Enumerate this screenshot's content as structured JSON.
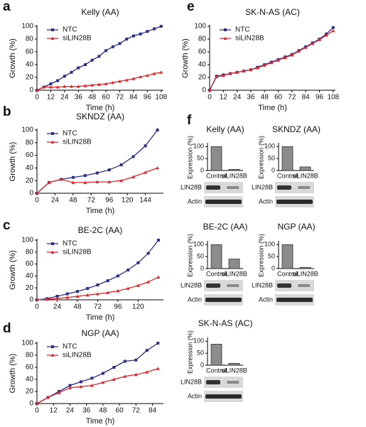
{
  "chart_data": [
    {
      "type": "line",
      "panel_label": "a",
      "title": "Kelly (AA)",
      "x_label": "Time (h)",
      "y_label": "Growth (%)",
      "x": [
        0,
        6,
        12,
        18,
        24,
        30,
        36,
        42,
        48,
        54,
        60,
        66,
        72,
        78,
        84,
        90,
        96,
        102,
        108
      ],
      "series": [
        {
          "name": "NTC",
          "color": "#2b2f8a",
          "values": [
            0,
            5,
            10,
            15,
            22,
            28,
            35,
            40,
            47,
            53,
            62,
            68,
            73,
            80,
            85,
            88,
            92,
            96,
            100
          ]
        },
        {
          "name": "siLIN28B",
          "color": "#e0282c",
          "values": [
            0,
            5,
            5,
            5,
            6,
            6,
            6,
            7,
            8,
            9,
            10,
            12,
            14,
            16,
            18,
            21,
            23,
            26,
            28
          ]
        }
      ],
      "xlim": [
        0,
        110
      ],
      "xticks": [
        0,
        12,
        24,
        36,
        48,
        60,
        72,
        84,
        96,
        108
      ],
      "ylim": [
        0,
        100
      ],
      "yticks": [
        0,
        20,
        40,
        60,
        80,
        100
      ]
    },
    {
      "type": "line",
      "panel_label": "b",
      "title": "SKNDZ (AA)",
      "x_label": "Time (h)",
      "y_label": "Growth (%)",
      "x": [
        0,
        16,
        32,
        48,
        64,
        80,
        96,
        112,
        128,
        144,
        160
      ],
      "series": [
        {
          "name": "NTC",
          "color": "#2b2f8a",
          "values": [
            0,
            17,
            22,
            25,
            28,
            32,
            37,
            45,
            58,
            75,
            100
          ]
        },
        {
          "name": "siLIN28B",
          "color": "#e0282c",
          "values": [
            0,
            17,
            22,
            17,
            17,
            18,
            18,
            20,
            26,
            33,
            40
          ]
        }
      ],
      "xlim": [
        0,
        168
      ],
      "xticks": [
        0,
        24,
        48,
        72,
        96,
        120,
        144
      ],
      "ylim": [
        0,
        100
      ],
      "yticks": [
        0,
        20,
        40,
        60,
        80,
        100
      ]
    },
    {
      "type": "line",
      "panel_label": "c",
      "title": "BE-2C (AA)",
      "x_label": "Time (h)",
      "y_label": "Growth (%)",
      "x": [
        0,
        12,
        24,
        36,
        48,
        60,
        72,
        84,
        96,
        108,
        120,
        132,
        144
      ],
      "series": [
        {
          "name": "NTC",
          "color": "#2b2f8a",
          "values": [
            0,
            2,
            6,
            10,
            14,
            19,
            25,
            32,
            40,
            50,
            62,
            78,
            100
          ]
        },
        {
          "name": "siLIN28B",
          "color": "#e0282c",
          "values": [
            0,
            1,
            2,
            4,
            6,
            8,
            10,
            12,
            15,
            19,
            24,
            30,
            38
          ]
        }
      ],
      "xlim": [
        0,
        150
      ],
      "xticks": [
        0,
        24,
        48,
        72,
        96,
        120
      ],
      "ylim": [
        0,
        100
      ],
      "yticks": [
        0,
        20,
        40,
        60,
        80,
        100
      ]
    },
    {
      "type": "line",
      "panel_label": "d",
      "title": "NGP (AA)",
      "x_label": "Time (h)",
      "y_label": "Growth (%)",
      "x": [
        0,
        8,
        16,
        24,
        32,
        40,
        48,
        56,
        64,
        72,
        80,
        88
      ],
      "series": [
        {
          "name": "NTC",
          "color": "#2b2f8a",
          "values": [
            0,
            10,
            20,
            30,
            36,
            42,
            50,
            60,
            70,
            72,
            88,
            100
          ]
        },
        {
          "name": "siLIN28B",
          "color": "#e0282c",
          "values": [
            0,
            10,
            18,
            26,
            28,
            30,
            35,
            40,
            45,
            48,
            52,
            58
          ]
        }
      ],
      "xlim": [
        0,
        92
      ],
      "xticks": [
        0,
        12,
        24,
        36,
        48,
        60,
        72,
        84
      ],
      "ylim": [
        0,
        100
      ],
      "yticks": [
        0,
        20,
        40,
        60,
        80,
        100
      ]
    },
    {
      "type": "line",
      "panel_label": "e",
      "title": "SK-N-AS (AC)",
      "x_label": "Time (h)",
      "y_label": "Growth (%)",
      "x": [
        0,
        6,
        12,
        18,
        24,
        30,
        36,
        42,
        48,
        54,
        60,
        66,
        72,
        78,
        84,
        90,
        96,
        102,
        108
      ],
      "series": [
        {
          "name": "NTC",
          "color": "#2b2f8a",
          "values": [
            0,
            22,
            24,
            26,
            28,
            30,
            32,
            36,
            40,
            44,
            48,
            52,
            56,
            62,
            68,
            74,
            80,
            88,
            98
          ]
        },
        {
          "name": "siLIN28B",
          "color": "#e0282c",
          "values": [
            0,
            21,
            23,
            26,
            28,
            30,
            32,
            35,
            39,
            43,
            47,
            51,
            55,
            61,
            67,
            73,
            79,
            86,
            93
          ]
        }
      ],
      "xlim": [
        0,
        110
      ],
      "xticks": [
        0,
        12,
        24,
        36,
        48,
        60,
        72,
        84,
        96,
        108
      ],
      "ylim": [
        0,
        100
      ],
      "yticks": [
        0,
        20,
        40,
        60,
        80,
        100
      ]
    },
    {
      "type": "bar",
      "panel_label": "f",
      "title": "Kelly (AA)",
      "y_label": "Expression (%)",
      "categories": [
        "Control",
        "siLIN28B"
      ],
      "values": [
        100,
        5
      ],
      "color": "#8c8c8c",
      "ylim": [
        0,
        110
      ],
      "yticks": [
        0,
        50,
        100
      ],
      "blot_labels": [
        "LIN28B",
        "Actin"
      ]
    },
    {
      "type": "bar",
      "title": "SKNDZ (AA)",
      "y_label": "Expression (%)",
      "categories": [
        "Control",
        "siLIN28B"
      ],
      "values": [
        100,
        15
      ],
      "color": "#8c8c8c",
      "ylim": [
        0,
        110
      ],
      "yticks": [
        0,
        50,
        100
      ],
      "blot_labels": [
        "LIN28B",
        "Actin"
      ]
    },
    {
      "type": "bar",
      "title": "BE-2C (AA)",
      "y_label": "Expression (%)",
      "categories": [
        "Control",
        "siLIN28B"
      ],
      "values": [
        100,
        40
      ],
      "color": "#8c8c8c",
      "ylim": [
        0,
        110
      ],
      "yticks": [
        0,
        50,
        100
      ],
      "blot_labels": [
        "LIN28B",
        "Actin"
      ]
    },
    {
      "type": "bar",
      "title": "NGP (AA)",
      "y_label": "Expression (%)",
      "categories": [
        "Control",
        "siLIN28B"
      ],
      "values": [
        100,
        5
      ],
      "color": "#8c8c8c",
      "ylim": [
        0,
        110
      ],
      "yticks": [
        0,
        50,
        100
      ],
      "blot_labels": [
        "LIN28B",
        "Actin"
      ]
    },
    {
      "type": "bar",
      "title": "SK-N-AS (AC)",
      "y_label": "Expression (%)",
      "categories": [
        "Control",
        "siLIN28B"
      ],
      "values": [
        88,
        8
      ],
      "color": "#8c8c8c",
      "ylim": [
        0,
        110
      ],
      "yticks": [
        0,
        50,
        100
      ],
      "blot_labels": [
        "LIN28B",
        "Actin"
      ]
    }
  ]
}
